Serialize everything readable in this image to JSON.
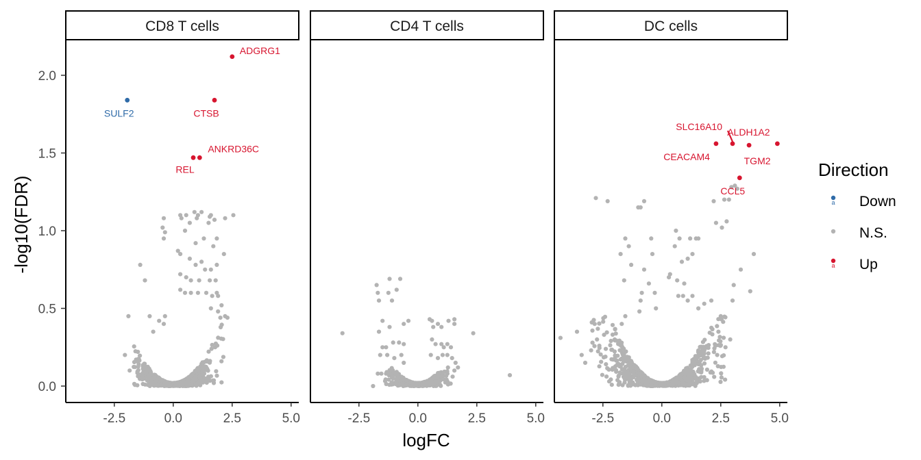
{
  "chart_data": {
    "type": "scatter",
    "x_label": "logFC",
    "y_label": "-log10(FDR)",
    "x_ticks": [
      -2.5,
      0.0,
      2.5,
      5.0
    ],
    "x_tick_labels": [
      "-2.5",
      "0.0",
      "2.5",
      "5.0"
    ],
    "y_ticks": [
      0.0,
      0.5,
      1.0,
      1.5,
      2.0
    ],
    "y_tick_labels": [
      "0.0",
      "0.5",
      "1.0",
      "1.5",
      "2.0"
    ],
    "xlim": [
      -4.8,
      5.2
    ],
    "ylim": [
      -0.1,
      2.23
    ],
    "legend": {
      "title": "Direction",
      "placement": "right",
      "entries": [
        {
          "label": "Down",
          "color": "#2F6BA8"
        },
        {
          "label": "N.S.",
          "color": "#B3B3B3"
        },
        {
          "label": "Up",
          "color": "#D7152F"
        }
      ]
    },
    "colors": {
      "Down": "#2F6BA8",
      "N.S.": "#B3B3B3",
      "Up": "#D7152F"
    },
    "panels": [
      {
        "title": "CD8 T cells",
        "significant": [
          {
            "gene": "ADGRG1",
            "x": 2.5,
            "y": 2.12,
            "direction": "Up"
          },
          {
            "gene": "SULF2",
            "x": -1.95,
            "y": 1.84,
            "direction": "Down"
          },
          {
            "gene": "CTSB",
            "x": 1.75,
            "y": 1.84,
            "direction": "Up"
          },
          {
            "gene": "ANKRD36C",
            "x": 1.12,
            "y": 1.47,
            "direction": "Up"
          },
          {
            "gene": "REL",
            "x": 0.85,
            "y": 1.47,
            "direction": "Up"
          }
        ],
        "ns_outliers": [
          [
            -1.9,
            0.45
          ],
          [
            -2.05,
            0.2
          ],
          [
            -1.85,
            0.1
          ],
          [
            -1.4,
            0.78
          ],
          [
            -1.2,
            0.68
          ],
          [
            -1.0,
            0.45
          ],
          [
            -0.85,
            0.35
          ],
          [
            -0.6,
            0.42
          ],
          [
            -0.4,
            0.4
          ],
          [
            -0.35,
            0.45
          ],
          [
            -0.4,
            1.08
          ],
          [
            -0.45,
            1.02
          ],
          [
            -0.35,
            0.99
          ],
          [
            -0.4,
            0.95
          ],
          [
            0.3,
            1.1
          ],
          [
            0.35,
            1.08
          ],
          [
            0.55,
            1.1
          ],
          [
            0.7,
            1.05
          ],
          [
            0.5,
            1.0
          ],
          [
            0.9,
            1.12
          ],
          [
            1.0,
            1.08
          ],
          [
            1.05,
            1.1
          ],
          [
            1.2,
            1.12
          ],
          [
            1.5,
            1.05
          ],
          [
            1.55,
            1.09
          ],
          [
            1.6,
            1.1
          ],
          [
            1.75,
            1.07
          ],
          [
            2.2,
            1.08
          ],
          [
            2.55,
            1.1
          ],
          [
            0.95,
            0.92
          ],
          [
            1.3,
            0.95
          ],
          [
            1.7,
            0.9
          ],
          [
            1.85,
            0.95
          ],
          [
            2.15,
            0.85
          ],
          [
            0.2,
            0.87
          ],
          [
            0.3,
            0.85
          ],
          [
            0.7,
            0.82
          ],
          [
            0.95,
            0.78
          ],
          [
            1.2,
            0.8
          ],
          [
            1.35,
            0.75
          ],
          [
            1.6,
            0.75
          ],
          [
            1.85,
            0.78
          ],
          [
            0.3,
            0.72
          ],
          [
            0.55,
            0.7
          ],
          [
            0.75,
            0.68
          ],
          [
            1.1,
            0.68
          ],
          [
            1.55,
            0.68
          ],
          [
            1.8,
            0.68
          ],
          [
            0.3,
            0.62
          ],
          [
            0.5,
            0.6
          ],
          [
            0.75,
            0.6
          ],
          [
            1.05,
            0.6
          ],
          [
            1.4,
            0.6
          ],
          [
            1.65,
            0.58
          ],
          [
            1.85,
            0.6
          ],
          [
            1.6,
            0.5
          ],
          [
            1.9,
            0.48
          ],
          [
            2.05,
            0.52
          ],
          [
            1.9,
            0.58
          ],
          [
            2.2,
            0.45
          ],
          [
            2.3,
            0.44
          ],
          [
            2.0,
            0.44
          ]
        ],
        "ns_cloud": {
          "x": [
            -1.7,
            2.15
          ],
          "y_peak": 0.45,
          "count": 900
        }
      },
      {
        "title": "CD4 T cells",
        "significant": [],
        "ns_outliers": [
          [
            -3.2,
            0.34
          ],
          [
            -1.9,
            0.0
          ],
          [
            -1.75,
            0.65
          ],
          [
            -1.7,
            0.6
          ],
          [
            -1.65,
            0.55
          ],
          [
            -1.2,
            0.69
          ],
          [
            -1.25,
            0.6
          ],
          [
            -1.1,
            0.55
          ],
          [
            -0.75,
            0.69
          ],
          [
            -0.9,
            0.62
          ],
          [
            -1.65,
            0.35
          ],
          [
            -1.5,
            0.42
          ],
          [
            -1.2,
            0.38
          ],
          [
            -0.6,
            0.4
          ],
          [
            -0.4,
            0.42
          ],
          [
            -1.5,
            0.25
          ],
          [
            -1.35,
            0.25
          ],
          [
            -1.05,
            0.28
          ],
          [
            -0.8,
            0.28
          ],
          [
            -0.6,
            0.27
          ],
          [
            -1.6,
            0.2
          ],
          [
            -1.3,
            0.2
          ],
          [
            -1.0,
            0.18
          ],
          [
            -0.7,
            0.2
          ],
          [
            -0.6,
            0.15
          ],
          [
            -1.7,
            0.08
          ],
          [
            -1.55,
            0.08
          ],
          [
            -1.35,
            0.08
          ],
          [
            -1.1,
            0.1
          ],
          [
            -0.95,
            0.08
          ],
          [
            0.5,
            0.43
          ],
          [
            0.6,
            0.42
          ],
          [
            0.65,
            0.38
          ],
          [
            0.85,
            0.4
          ],
          [
            1.0,
            0.38
          ],
          [
            1.3,
            0.42
          ],
          [
            1.55,
            0.4
          ],
          [
            1.55,
            0.43
          ],
          [
            0.6,
            0.3
          ],
          [
            0.75,
            0.27
          ],
          [
            1.0,
            0.27
          ],
          [
            1.1,
            0.25
          ],
          [
            1.25,
            0.27
          ],
          [
            1.4,
            0.25
          ],
          [
            0.55,
            0.2
          ],
          [
            0.85,
            0.18
          ],
          [
            1.05,
            0.2
          ],
          [
            1.25,
            0.2
          ],
          [
            1.45,
            0.18
          ],
          [
            1.6,
            0.15
          ],
          [
            2.35,
            0.34
          ],
          [
            3.9,
            0.07
          ],
          [
            1.7,
            0.12
          ],
          [
            1.55,
            0.1
          ]
        ],
        "ns_cloud": {
          "x": [
            -1.4,
            1.5
          ],
          "y_peak": 0.12,
          "count": 600
        }
      },
      {
        "title": "DC cells",
        "significant": [
          {
            "gene": "SLC16A10",
            "x": 3.0,
            "y": 1.56,
            "direction": "Up"
          },
          {
            "gene": "ALDH1A2",
            "x": 4.9,
            "y": 1.56,
            "direction": "Up"
          },
          {
            "gene": "CEACAM4",
            "x": 2.3,
            "y": 1.56,
            "direction": "Up"
          },
          {
            "gene": "TGM2",
            "x": 3.7,
            "y": 1.55,
            "direction": "Up"
          },
          {
            "gene": "CCL5",
            "x": 3.3,
            "y": 1.34,
            "direction": "Up"
          }
        ],
        "ns_outliers": [
          [
            -4.3,
            0.31
          ],
          [
            -3.6,
            0.35
          ],
          [
            -3.4,
            0.2
          ],
          [
            -3.25,
            0.15
          ],
          [
            -2.8,
            1.21
          ],
          [
            -2.3,
            1.19
          ],
          [
            -1.75,
            0.85
          ],
          [
            -1.55,
            0.95
          ],
          [
            -1.4,
            0.9
          ],
          [
            -1.3,
            0.78
          ],
          [
            -1.6,
            0.68
          ],
          [
            -1.0,
            1.15
          ],
          [
            -0.9,
            1.15
          ],
          [
            -0.75,
            1.19
          ],
          [
            -0.45,
            0.95
          ],
          [
            -0.4,
            0.85
          ],
          [
            -0.75,
            0.75
          ],
          [
            -0.55,
            0.66
          ],
          [
            -0.85,
            0.6
          ],
          [
            -0.9,
            0.55
          ],
          [
            -0.3,
            0.6
          ],
          [
            -0.25,
            0.5
          ],
          [
            -0.95,
            0.48
          ],
          [
            -1.55,
            0.45
          ],
          [
            -1.7,
            0.4
          ],
          [
            -2.0,
            0.3
          ],
          [
            -2.45,
            0.33
          ],
          [
            -2.75,
            0.3
          ],
          [
            -3.0,
            0.23
          ],
          [
            -2.85,
            0.4
          ],
          [
            0.6,
            1.0
          ],
          [
            0.75,
            0.95
          ],
          [
            0.55,
            0.9
          ],
          [
            0.85,
            0.8
          ],
          [
            1.1,
            0.82
          ],
          [
            1.2,
            0.95
          ],
          [
            1.45,
            0.95
          ],
          [
            1.55,
            0.95
          ],
          [
            1.3,
            0.85
          ],
          [
            0.65,
            0.68
          ],
          [
            0.95,
            0.66
          ],
          [
            0.3,
            0.7
          ],
          [
            0.35,
            0.72
          ],
          [
            0.7,
            0.58
          ],
          [
            0.9,
            0.58
          ],
          [
            1.1,
            0.55
          ],
          [
            1.3,
            0.58
          ],
          [
            1.55,
            0.5
          ],
          [
            1.8,
            0.53
          ],
          [
            2.1,
            0.55
          ],
          [
            2.3,
            1.05
          ],
          [
            2.55,
            1.02
          ],
          [
            2.75,
            1.06
          ],
          [
            2.65,
            1.2
          ],
          [
            2.85,
            1.2
          ],
          [
            2.2,
            1.19
          ],
          [
            2.95,
            1.28
          ],
          [
            3.1,
            1.29
          ],
          [
            3.2,
            1.27
          ],
          [
            3.05,
            0.65
          ],
          [
            3.0,
            0.55
          ],
          [
            3.35,
            0.75
          ],
          [
            3.9,
            0.85
          ],
          [
            3.75,
            0.61
          ],
          [
            2.5,
            0.45
          ],
          [
            2.4,
            0.35
          ],
          [
            2.7,
            0.25
          ],
          [
            2.9,
            0.3
          ],
          [
            2.35,
            0.2
          ]
        ],
        "ns_cloud": {
          "x": [
            -3.0,
            2.7
          ],
          "y_peak": 0.45,
          "count": 1100
        }
      }
    ]
  }
}
